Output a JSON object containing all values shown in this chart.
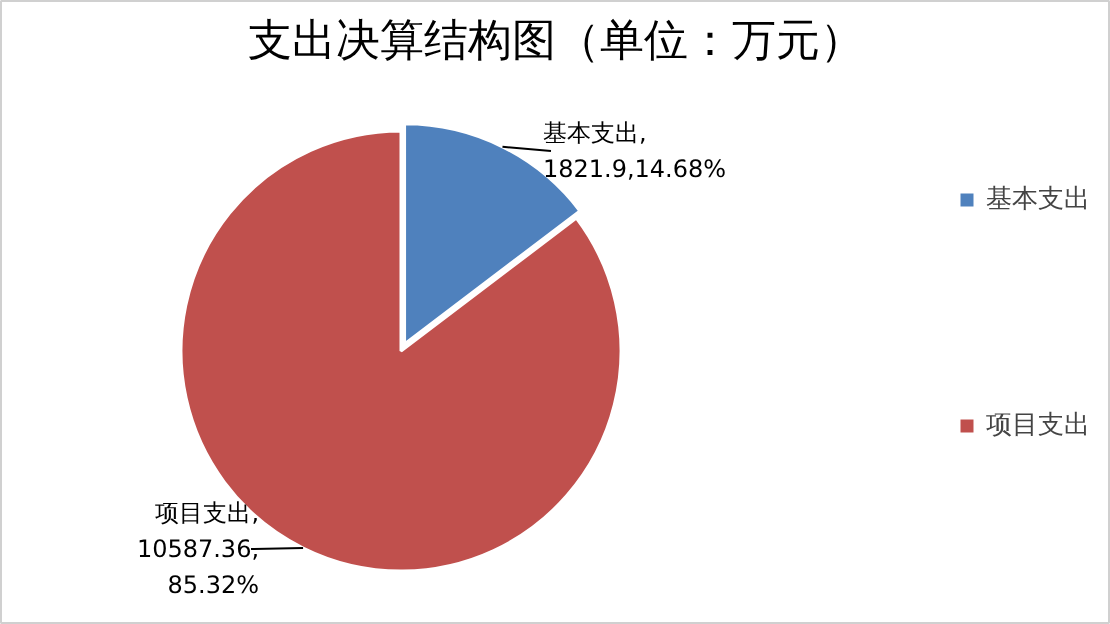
{
  "chart_data": {
    "type": "pie",
    "title": "支出决算结构图（单位：万元）",
    "categories": [
      "基本支出",
      "项目支出"
    ],
    "values": [
      1821.9,
      10587.36
    ],
    "colors": [
      "#4f81bd",
      "#c0504d"
    ],
    "value_labels": [
      "基本支出,\n1821.9,14.68%",
      "项目支出,\n10587.36,\n85.32%"
    ],
    "legend": "right"
  }
}
